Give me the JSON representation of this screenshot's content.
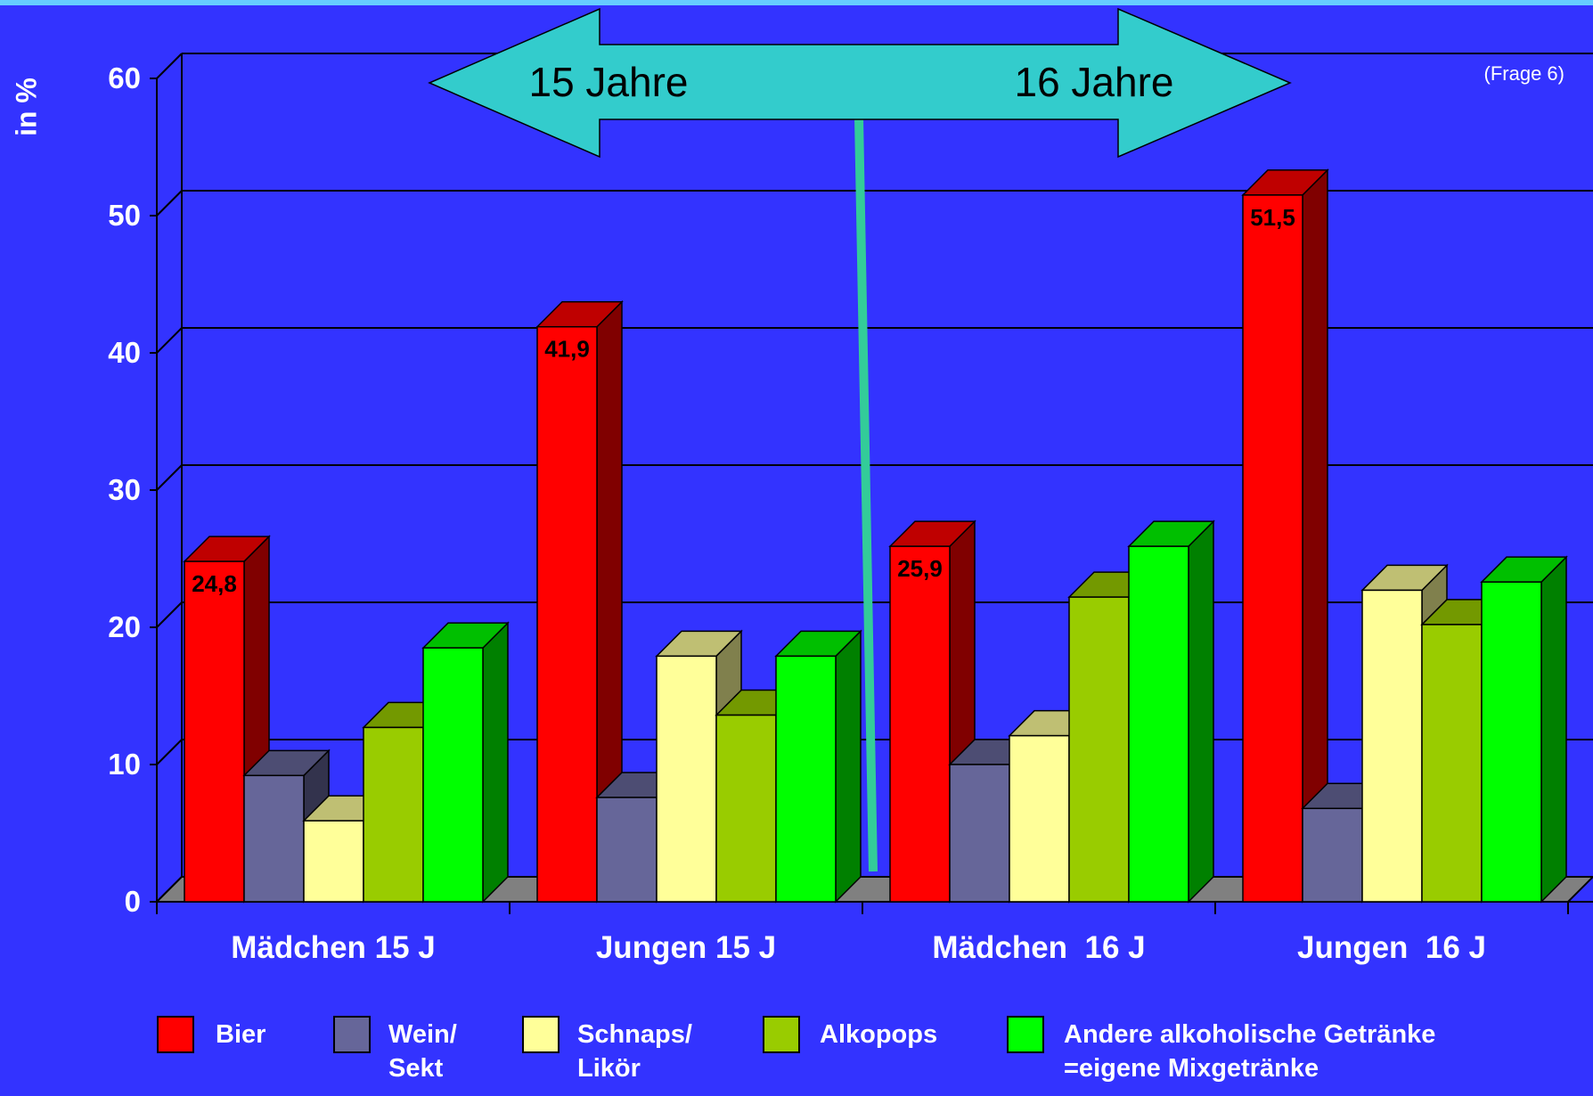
{
  "note": "(Frage 6)",
  "arrow": {
    "left_label": "15 Jahre",
    "right_label": "16 Jahre"
  },
  "legend": [
    {
      "label": "Bier",
      "color": "#ff0000"
    },
    {
      "label": "Wein/\nSekt",
      "color": "#666699"
    },
    {
      "label": "Schnaps/\nLikör",
      "color": "#ffff99"
    },
    {
      "label": "Alkopops",
      "color": "#99cc00"
    },
    {
      "label": "Andere alkoholische Getränke\n=eigene Mixgetränke",
      "color": "#00ff00"
    }
  ],
  "colors": {
    "background": "#3333ff",
    "grid": "#000000",
    "text": "#ffffff",
    "arrow": "#33cccc",
    "divider": "#33cc99"
  },
  "chart_data": {
    "type": "bar",
    "ylabel": "in %",
    "ylim": [
      0,
      60
    ],
    "yticks": [
      "0",
      "10",
      "20",
      "30",
      "40",
      "50",
      "60"
    ],
    "categories": [
      "Mädchen 15 J",
      "Jungen 15 J",
      "Mädchen  16 J",
      "Jungen  16 J"
    ],
    "series": [
      {
        "name": "Bier",
        "values": [
          24.8,
          41.9,
          25.9,
          51.5
        ],
        "labels": [
          "24,8",
          "41,9",
          "25,9",
          "51,5"
        ]
      },
      {
        "name": "Wein/ Sekt",
        "values": [
          9.2,
          7.6,
          10.0,
          6.8
        ]
      },
      {
        "name": "Schnaps/ Likör",
        "values": [
          5.9,
          17.9,
          12.1,
          22.7
        ]
      },
      {
        "name": "Alkopops",
        "values": [
          12.7,
          13.6,
          22.2,
          20.2
        ]
      },
      {
        "name": "Andere alkoholische Getränke =eigene Mixgetränke",
        "values": [
          18.5,
          17.9,
          25.9,
          23.3
        ]
      }
    ]
  }
}
